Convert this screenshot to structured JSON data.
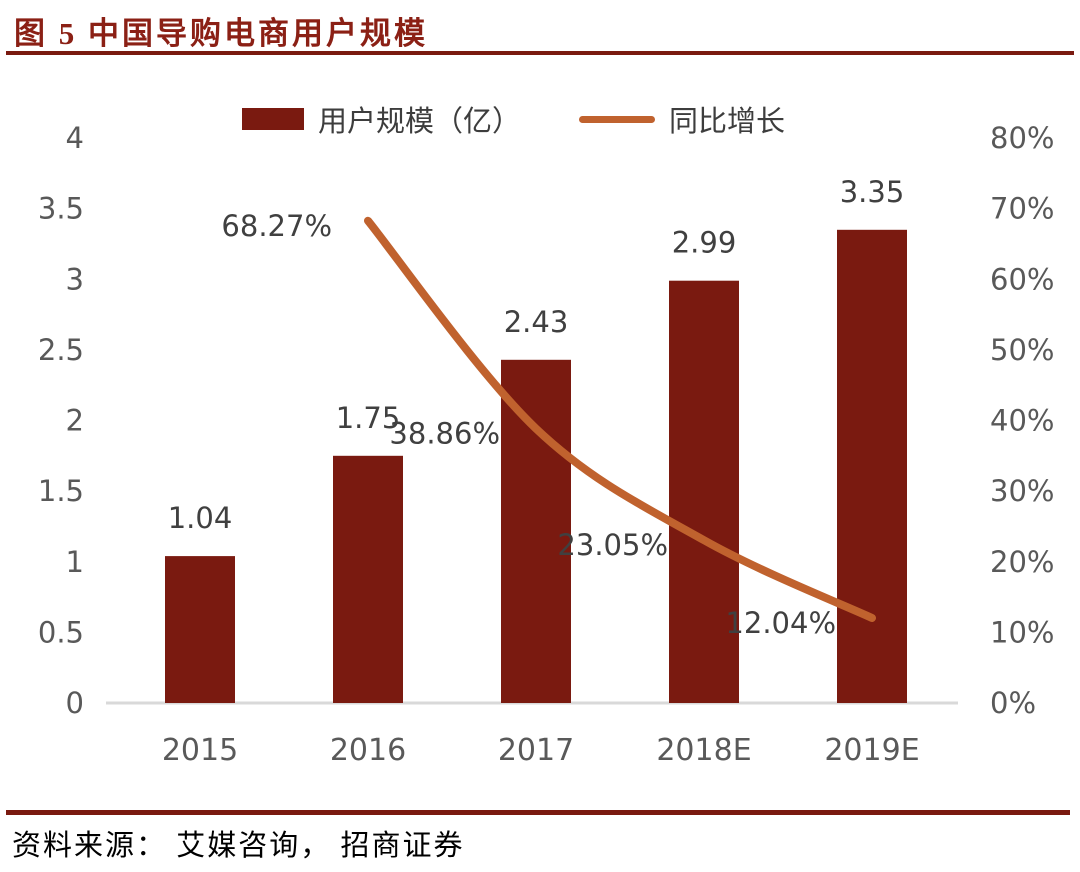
{
  "title": "图 5  中国导购电商用户规模",
  "source": "资料来源： 艾媒咨询， 招商证券",
  "colors": {
    "bar": "#7A1A10",
    "line": "#C0622E",
    "title": "#8B2015",
    "rule": "#7A1A10",
    "axis_label": "#595959",
    "data_label": "#404040",
    "axis_line": "#D9D9D9"
  },
  "legend": [
    {
      "label": "用户规模（亿）",
      "marker": "bar-swatch"
    },
    {
      "label": "同比增长",
      "marker": "line-swatch"
    }
  ],
  "chart_data": {
    "type": "bar+line combo",
    "categories": [
      "2015",
      "2016",
      "2017",
      "2018E",
      "2019E"
    ],
    "series": [
      {
        "name": "用户规模（亿）",
        "type": "bar",
        "axis": "left",
        "values": [
          1.04,
          1.75,
          2.43,
          2.99,
          3.35
        ],
        "labels": [
          "1.04",
          "1.75",
          "2.43",
          "2.99",
          "3.35"
        ]
      },
      {
        "name": "同比增长",
        "type": "line",
        "axis": "right",
        "values": [
          null,
          68.27,
          38.86,
          23.05,
          12.04
        ],
        "labels": [
          "68.27%",
          "38.86%",
          "23.05%",
          "12.04%"
        ]
      }
    ],
    "left_axis": {
      "min": 0,
      "max": 4,
      "step": 0.5,
      "ticks": [
        "0",
        "0.5",
        "1",
        "1.5",
        "2",
        "2.5",
        "3",
        "3.5",
        "4"
      ]
    },
    "right_axis": {
      "min": 0,
      "max": 80,
      "step": 10,
      "ticks": [
        "0%",
        "10%",
        "20%",
        "30%",
        "40%",
        "50%",
        "60%",
        "70%",
        "80%"
      ]
    },
    "grid": false,
    "legend_position": "top-center"
  }
}
